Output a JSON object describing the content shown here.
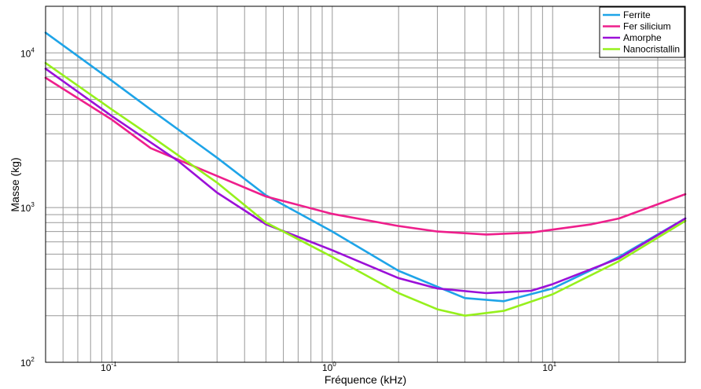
{
  "chart_data": {
    "type": "line",
    "title": "",
    "xlabel": "Fréquence (kHz)",
    "ylabel": "Masse (kg)",
    "x_scale": "log",
    "y_scale": "log",
    "xlim": [
      0.05,
      40
    ],
    "ylim": [
      100,
      20000
    ],
    "x_ticks": [
      {
        "value": 0.1,
        "base": "10",
        "exp": "-1"
      },
      {
        "value": 1,
        "base": "10",
        "exp": "0"
      },
      {
        "value": 10,
        "base": "10",
        "exp": "1"
      }
    ],
    "y_ticks": [
      {
        "value": 100,
        "base": "10",
        "exp": "2"
      },
      {
        "value": 1000,
        "base": "10",
        "exp": "3"
      },
      {
        "value": 10000,
        "base": "10",
        "exp": "4"
      }
    ],
    "grid": true,
    "legend": "top-right",
    "series": [
      {
        "name": "Ferrite",
        "color": "#1ea4e8",
        "x": [
          0.05,
          0.1,
          0.15,
          0.3,
          0.5,
          1,
          2,
          4,
          6,
          10,
          20,
          40
        ],
        "y": [
          13500,
          6600,
          4300,
          2100,
          1200,
          700,
          390,
          260,
          248,
          300,
          480,
          850
        ]
      },
      {
        "name": "Fer silicium",
        "color": "#ee1f8c",
        "x": [
          0.05,
          0.1,
          0.15,
          0.3,
          0.5,
          1,
          2,
          3,
          5,
          8,
          10,
          15,
          20,
          40
        ],
        "y": [
          6900,
          3700,
          2420,
          1600,
          1180,
          910,
          760,
          700,
          670,
          690,
          720,
          780,
          850,
          1220
        ]
      },
      {
        "name": "Amorphe",
        "color": "#9b10d8",
        "x": [
          0.05,
          0.1,
          0.2,
          0.3,
          0.5,
          1,
          2,
          3,
          5,
          8,
          10,
          20,
          40
        ],
        "y": [
          7900,
          3900,
          2000,
          1250,
          780,
          530,
          350,
          300,
          280,
          290,
          320,
          470,
          850
        ]
      },
      {
        "name": "Nanocristallin",
        "color": "#96f01c",
        "x": [
          0.05,
          0.1,
          0.15,
          0.3,
          0.5,
          1,
          2,
          3,
          4,
          6,
          10,
          20,
          40
        ],
        "y": [
          8600,
          4300,
          2900,
          1450,
          800,
          480,
          280,
          220,
          200,
          215,
          275,
          450,
          820
        ]
      }
    ]
  }
}
